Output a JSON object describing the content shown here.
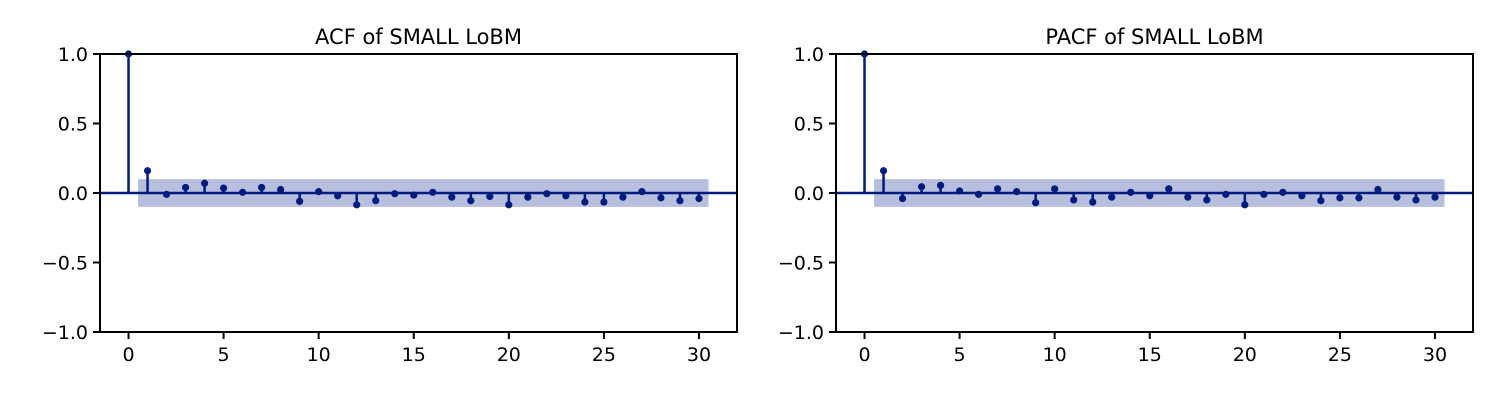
{
  "colors": {
    "series": "#001c7f",
    "band": "#b8bedd"
  },
  "chart_data": [
    {
      "type": "stem",
      "title": "ACF of SMALL LoBM",
      "xlabel": "",
      "ylabel": "",
      "xlim": [
        -1.5,
        32
      ],
      "ylim": [
        -1,
        1
      ],
      "xticks": [
        0,
        5,
        10,
        15,
        20,
        25,
        30
      ],
      "xtick_labels": [
        "0",
        "5",
        "10",
        "15",
        "20",
        "25",
        "30"
      ],
      "yticks": [
        -1,
        -0.5,
        0,
        0.5,
        1
      ],
      "ytick_labels": [
        "−1.0",
        "−0.5",
        "0.0",
        "0.5",
        "1.0"
      ],
      "confidence_band": {
        "x": [
          0.5,
          30.5
        ],
        "lower": -0.1,
        "upper": 0.1
      },
      "x": [
        0,
        1,
        2,
        3,
        4,
        5,
        6,
        7,
        8,
        9,
        10,
        11,
        12,
        13,
        14,
        15,
        16,
        17,
        18,
        19,
        20,
        21,
        22,
        23,
        24,
        25,
        26,
        27,
        28,
        29,
        30
      ],
      "values": [
        1.0,
        0.16,
        -0.01,
        0.04,
        0.07,
        0.035,
        0.005,
        0.04,
        0.025,
        -0.06,
        0.01,
        -0.02,
        -0.085,
        -0.055,
        -0.005,
        -0.015,
        0.005,
        -0.03,
        -0.055,
        -0.025,
        -0.085,
        -0.03,
        -0.005,
        -0.02,
        -0.065,
        -0.065,
        -0.03,
        0.01,
        -0.035,
        -0.055,
        -0.04
      ]
    },
    {
      "type": "stem",
      "title": "PACF of SMALL LoBM",
      "xlabel": "",
      "ylabel": "",
      "xlim": [
        -1.5,
        32
      ],
      "ylim": [
        -1,
        1
      ],
      "xticks": [
        0,
        5,
        10,
        15,
        20,
        25,
        30
      ],
      "xtick_labels": [
        "0",
        "5",
        "10",
        "15",
        "20",
        "25",
        "30"
      ],
      "yticks": [
        -1,
        -0.5,
        0,
        0.5,
        1
      ],
      "ytick_labels": [
        "−1.0",
        "−0.5",
        "0.0",
        "0.5",
        "1.0"
      ],
      "confidence_band": {
        "x": [
          0.5,
          30.5
        ],
        "lower": -0.1,
        "upper": 0.1
      },
      "x": [
        0,
        1,
        2,
        3,
        4,
        5,
        6,
        7,
        8,
        9,
        10,
        11,
        12,
        13,
        14,
        15,
        16,
        17,
        18,
        19,
        20,
        21,
        22,
        23,
        24,
        25,
        26,
        27,
        28,
        29,
        30
      ],
      "values": [
        1.0,
        0.16,
        -0.04,
        0.045,
        0.055,
        0.015,
        -0.01,
        0.03,
        0.01,
        -0.07,
        0.03,
        -0.05,
        -0.065,
        -0.03,
        0.005,
        -0.02,
        0.03,
        -0.03,
        -0.05,
        -0.01,
        -0.085,
        -0.01,
        0.005,
        -0.02,
        -0.055,
        -0.035,
        -0.035,
        0.025,
        -0.03,
        -0.05,
        -0.03
      ]
    }
  ]
}
